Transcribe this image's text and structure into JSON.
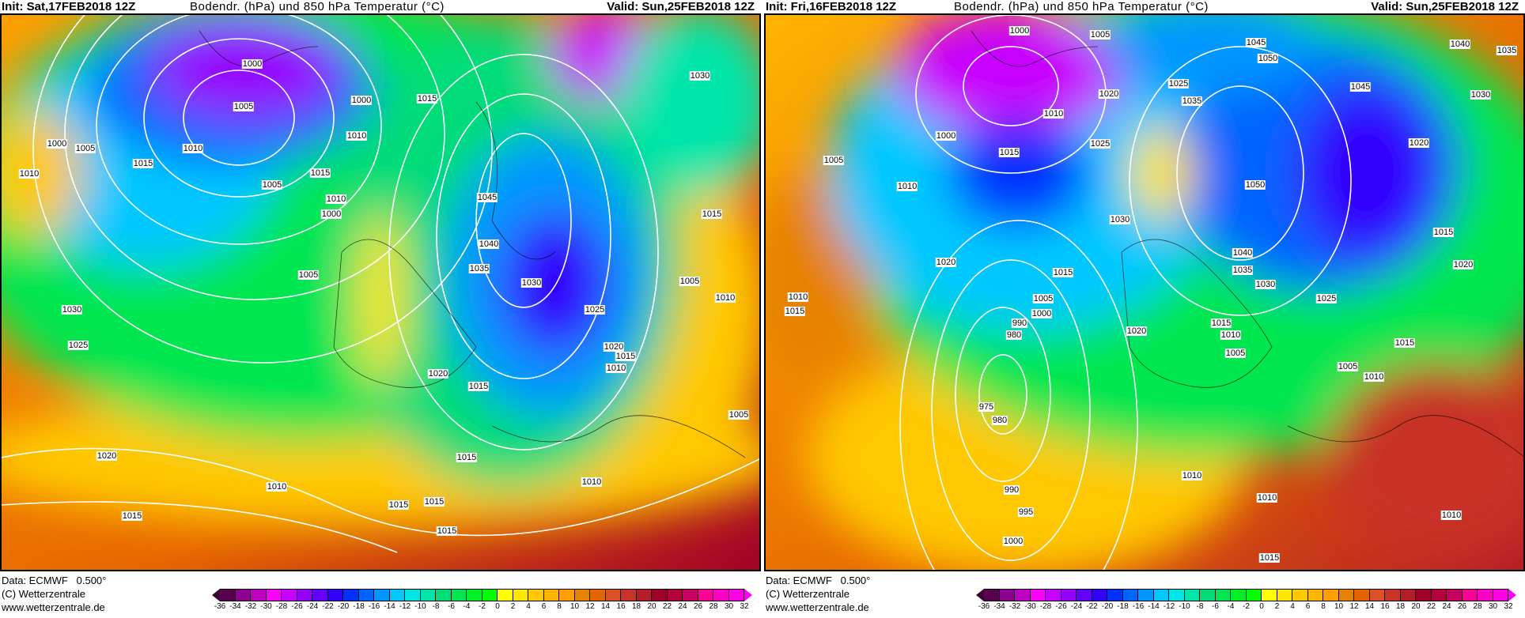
{
  "maps": [
    {
      "init": "Init: Sat,17FEB2018 12Z",
      "title": "Bodendr. (hPa) und 850 hPa Temperatur (°C)",
      "valid": "Valid: Sun,25FEB2018 12Z",
      "isobar_labels": [
        "1000",
        "1005",
        "1010",
        "1005",
        "1015",
        "1010",
        "1000",
        "1005",
        "1000",
        "1005",
        "1015",
        "1010",
        "1030",
        "1025",
        "1020",
        "1010",
        "1015",
        "1015",
        "1000",
        "1010",
        "1045",
        "1040",
        "1035",
        "1030",
        "1025",
        "1020",
        "1015",
        "1010",
        "1020",
        "1015",
        "1015",
        "1010",
        "1015",
        "1015",
        "1015",
        "1005",
        "1010",
        "1015",
        "1030",
        "1005"
      ]
    },
    {
      "init": "Init: Fri,16FEB2018 12Z",
      "title": "Bodendr. (hPa) und 850 hPa Temperatur (°C)",
      "valid": "Valid: Sun,25FEB2018 12Z",
      "isobar_labels": [
        "1000",
        "1005",
        "1045",
        "1050",
        "1040",
        "1035",
        "1030",
        "1045",
        "1025",
        "1035",
        "1020",
        "1010",
        "1000",
        "1005",
        "1010",
        "1015",
        "1025",
        "1050",
        "1030",
        "1020",
        "1015",
        "1005",
        "1000",
        "990",
        "980",
        "975",
        "980",
        "990",
        "995",
        "1000",
        "1010",
        "1015",
        "1040",
        "1035",
        "1030",
        "1025",
        "1020",
        "1015",
        "1010",
        "1005",
        "1020",
        "1015",
        "1020",
        "1015",
        "1005",
        "1010",
        "1010",
        "1010",
        "1015",
        "1010"
      ]
    }
  ],
  "footer": {
    "data_source": "Data: ECMWF   0.500°",
    "copyright": "(C) Wetterzentrale",
    "website": "www.wetterzentrale.de"
  },
  "colorbar": {
    "ticks": [
      "-36",
      "-34",
      "-32",
      "-30",
      "-28",
      "-26",
      "-24",
      "-22",
      "-20",
      "-18",
      "-16",
      "-14",
      "-12",
      "-10",
      "-8",
      "-6",
      "-4",
      "-2",
      "0",
      "2",
      "4",
      "6",
      "8",
      "10",
      "12",
      "14",
      "16",
      "18",
      "20",
      "22",
      "24",
      "26",
      "28",
      "30",
      "32"
    ],
    "colors": [
      "#5a0050",
      "#8c0090",
      "#c000c0",
      "#ff00ff",
      "#c800ff",
      "#9600ff",
      "#6400ff",
      "#3200ff",
      "#0032ff",
      "#0064ff",
      "#0096ff",
      "#00c8ff",
      "#00e6e6",
      "#00e6aa",
      "#00dc78",
      "#00e650",
      "#00f028",
      "#00ff00",
      "#ffff00",
      "#ffe600",
      "#ffc800",
      "#ffb400",
      "#ffa000",
      "#e68200",
      "#e66400",
      "#dc5028",
      "#c83228",
      "#b41e28",
      "#a00028",
      "#b4003c",
      "#c80064",
      "#ff0096",
      "#ff00c8",
      "#ff00e6"
    ]
  }
}
